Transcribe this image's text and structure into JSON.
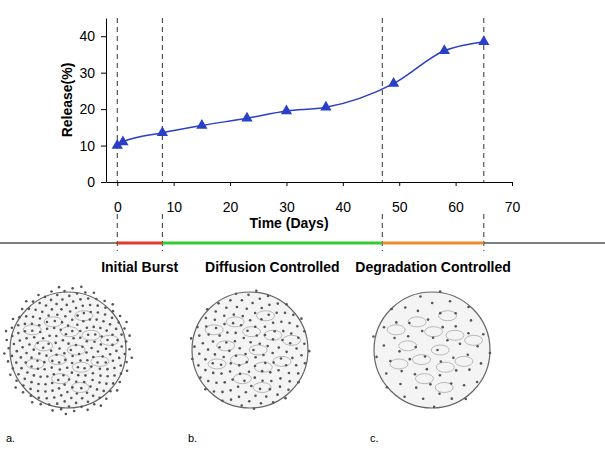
{
  "chart_data": {
    "type": "line",
    "x_label": "Time (Days)",
    "y_label": "Release(%)",
    "x": [
      0,
      1,
      8,
      15,
      23,
      30,
      37,
      49,
      58,
      65
    ],
    "series": [
      {
        "color": "#2a3fc8",
        "marker": "triangle",
        "values": [
          10,
          11,
          13.5,
          15.5,
          17.5,
          19.5,
          20.5,
          27,
          36,
          38.5
        ]
      }
    ],
    "xlim": [
      -2,
      70
    ],
    "xticks": [
      0,
      10,
      20,
      30,
      40,
      50,
      60,
      70
    ],
    "ylim": [
      0,
      45
    ],
    "yticks": [
      0,
      10,
      20,
      30,
      40
    ],
    "grid": false,
    "phases": [
      {
        "label": "Initial Burst",
        "start": 0,
        "end": 8,
        "color": "#e03c28"
      },
      {
        "label": "Diffusion Controlled",
        "start": 8,
        "end": 47,
        "color": "#33cc33"
      },
      {
        "label": "Degradation Controlled",
        "start": 47,
        "end": 65,
        "color": "#f08a30"
      }
    ],
    "illustrations": [
      "a.",
      "b.",
      "c."
    ]
  }
}
